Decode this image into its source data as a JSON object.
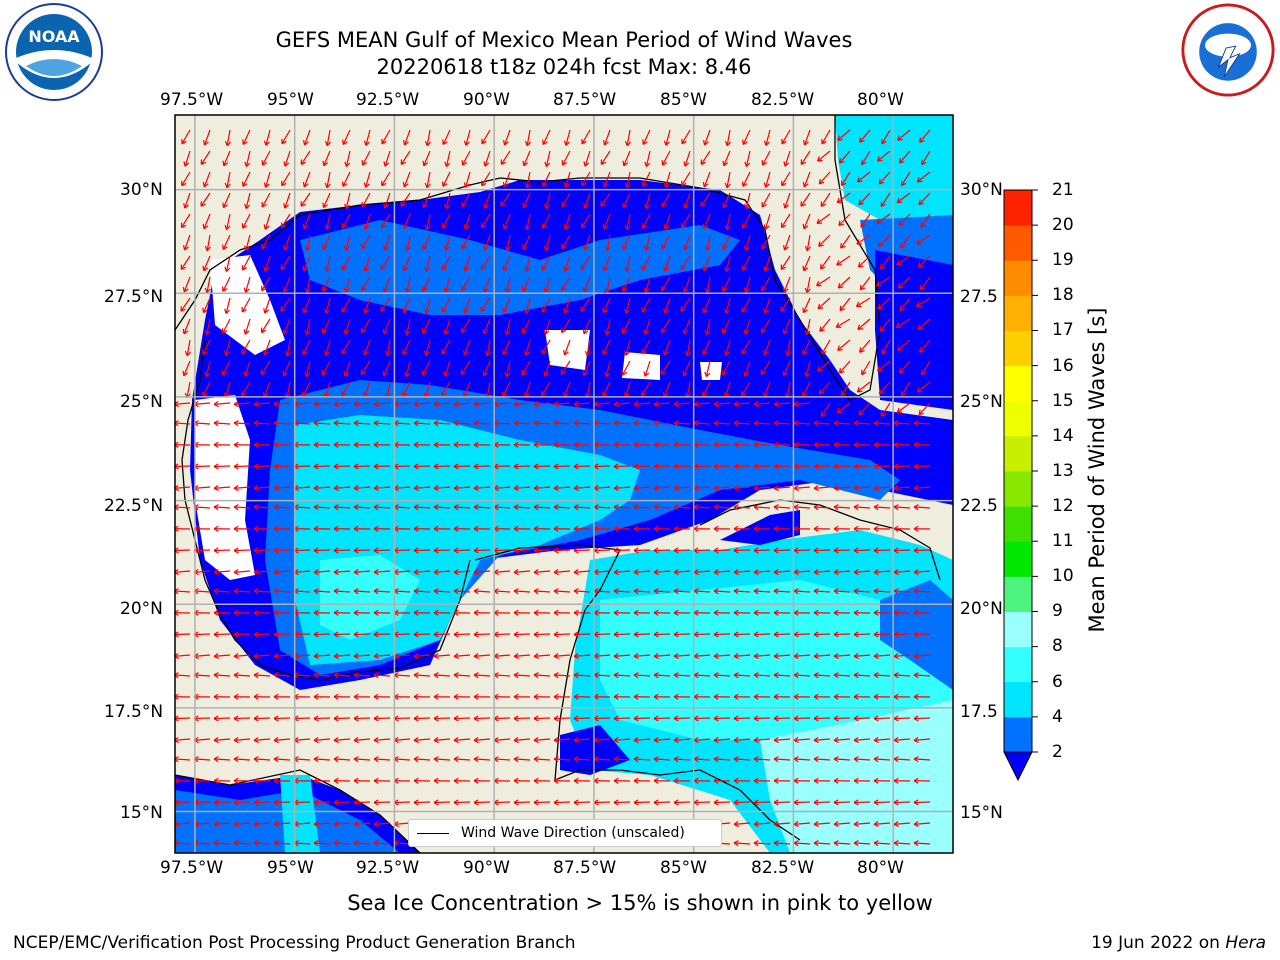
{
  "title": {
    "line1": "GEFS MEAN Gulf of Mexico Mean Period of Wind Waves",
    "line2": "20220618 t18z 024h fcst   Max: 8.46"
  },
  "logos": {
    "left": "noaa-logo",
    "right": "national-weather-service-logo"
  },
  "map": {
    "region": "Gulf of Mexico",
    "lon_ticks": [
      "97.5°W",
      "95°W",
      "92.5°W",
      "90°W",
      "87.5°W",
      "85°W",
      "82.5°W",
      "80°W"
    ],
    "lat_ticks_left": [
      "30°N",
      "27.5°N",
      "25°N",
      "22.5°N",
      "20°N",
      "17.5°N",
      "15°N"
    ],
    "lat_ticks_right": [
      "30°N",
      "27.5",
      "25°N",
      "22.5",
      "20°N",
      "17.5",
      "15°N"
    ],
    "lon_range": [
      -98,
      -78.5
    ],
    "lat_range": [
      14,
      31.8
    ],
    "gridlines": true,
    "colors": {
      "land": "#efedde",
      "no_data": "#ffffff",
      "arrows": "#ff0000",
      "coastline": "#000000",
      "grid": "#b0b0b0"
    }
  },
  "legend": {
    "label": "Wind Wave Direction (unscaled)",
    "placement": "bottom-center"
  },
  "colorbar": {
    "title": "Mean Period of Wind Waves [s]",
    "ticks": [
      "2",
      "4",
      "6",
      "8",
      "9",
      "10",
      "11",
      "12",
      "13",
      "14",
      "15",
      "16",
      "17",
      "18",
      "19",
      "20",
      "21"
    ],
    "colors": [
      "#0072ff",
      "#00e5ff",
      "#33ffff",
      "#99ffff",
      "#4cf47d",
      "#00e800",
      "#3fe000",
      "#88e800",
      "#c8ef00",
      "#eeff00",
      "#ffff00",
      "#ffd000",
      "#ffb000",
      "#ff8c00",
      "#ff5a00",
      "#ff2200"
    ],
    "under_color": "#0000ff",
    "extend": "min"
  },
  "seaice_note": "Sea Ice Concentration > 15% is shown in pink to yellow",
  "footer": {
    "left": "NCEP/EMC/Verification Post Processing Product Generation Branch",
    "right_date": "19 Jun 2022 on ",
    "right_host": "Hera"
  }
}
